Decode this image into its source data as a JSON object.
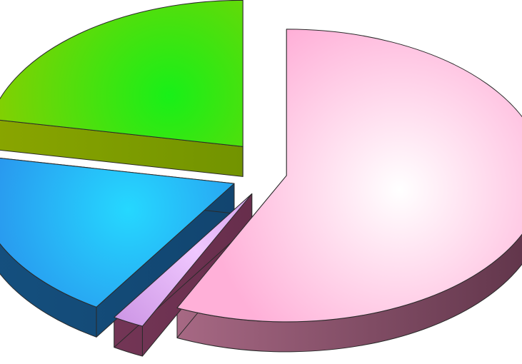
{
  "chart_data": {
    "type": "pie",
    "title": "",
    "legend": "none",
    "categories": [
      "",
      "",
      "",
      ""
    ],
    "values": [
      57,
      2,
      19,
      22
    ],
    "unit": "%",
    "style": "3d-exploded",
    "colors": [
      {
        "light": "#ffffff",
        "top": "#ffb0d8",
        "side_light": "#c47e9c",
        "side_dark": "#5e3348"
      },
      {
        "light": "#f0c8ff",
        "top": "#b06cd0",
        "side_light": "#7e3c5e",
        "side_dark": "#50203a"
      },
      {
        "light": "#25d8ff",
        "top": "#2b7fe8",
        "side_light": "#15507f",
        "side_dark": "#0e3a60"
      },
      {
        "light": "#18f018",
        "top": "#8fcc00",
        "side_light": "#8aa600",
        "side_dark": "#5a8000"
      }
    ]
  }
}
